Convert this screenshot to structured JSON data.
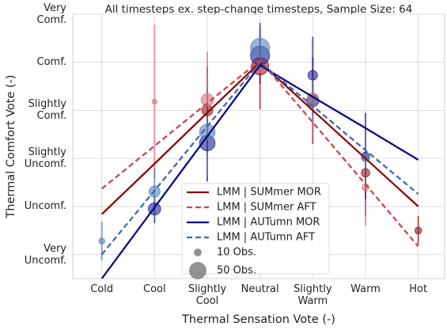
{
  "chart_data": {
    "type": "line",
    "title": "All timesteps ex. step-change timesteps, Sample Size: 64",
    "x_label": "Thermal Sensation Vote (-)",
    "y_label": "Thermal Comfort Vote (-)",
    "categories": [
      "Cold",
      "Cool",
      "Slightly Cool",
      "Neutral",
      "Slightly Warm",
      "Warm",
      "Hot"
    ],
    "ylim": [
      0.5,
      6.0
    ],
    "yticks": [
      {
        "value": 1,
        "label": "Very Uncomf."
      },
      {
        "value": 2,
        "label": "Uncomf."
      },
      {
        "value": 3,
        "label": "Slightly Uncomf."
      },
      {
        "value": 4,
        "label": "Slightly Comf."
      },
      {
        "value": 5,
        "label": "Comf."
      },
      {
        "value": 6,
        "label": "Very Comf."
      }
    ],
    "grid": true,
    "legend": "lower center",
    "series": [
      {
        "name": "LMM | SUMmer MOR",
        "color": "#8b0a0a",
        "linestyle": "solid",
        "values": [
          1.84,
          2.89,
          3.95,
          5.0,
          4.0,
          3.0,
          2.0
        ]
      },
      {
        "name": "LMM | SUMmer AFT",
        "color": "#c9474f",
        "linestyle": "dashed",
        "values": [
          2.37,
          3.26,
          4.15,
          5.04,
          3.75,
          2.46,
          1.17
        ]
      },
      {
        "name": "LMM | AUTumn MOR",
        "color": "#0a0a80",
        "linestyle": "solid",
        "values": [
          0.5,
          1.98,
          3.46,
          4.94,
          4.28,
          3.63,
          2.97
        ]
      },
      {
        "name": "LMM | AUTumn AFT",
        "color": "#4169aa",
        "linestyle": "dashed",
        "values": [
          1.0,
          2.33,
          3.67,
          5.0,
          4.09,
          3.17,
          2.26
        ]
      }
    ],
    "bubbles": [
      {
        "color": "#9b1c22",
        "values": [
          null,
          null,
          4.0,
          4.92,
          4.2,
          2.7,
          1.5
        ],
        "sizes": [
          null,
          null,
          20,
          50,
          25,
          12,
          8
        ],
        "errors": [
          null,
          null,
          0.9,
          0.9,
          0.9,
          0.9,
          0.3
        ]
      },
      {
        "color": "#d9737a",
        "values": [
          null,
          4.18,
          4.22,
          4.95,
          4.25,
          2.4,
          null
        ],
        "sizes": [
          null,
          4,
          25,
          40,
          20,
          8,
          null
        ],
        "errors": [
          null,
          1.6,
          1.0,
          0.5,
          0.6,
          0.8,
          null
        ]
      },
      {
        "color": "#23238f",
        "values": [
          null,
          1.95,
          3.32,
          5.14,
          4.73,
          3.05,
          null
        ],
        "sizes": [
          null,
          25,
          40,
          60,
          15,
          10,
          null
        ],
        "errors": [
          null,
          0.3,
          0.8,
          0.6,
          0.8,
          0.9,
          null
        ]
      },
      {
        "color": "#5b80bd",
        "values": [
          1.28,
          2.31,
          3.55,
          5.3,
          4.2,
          3.02,
          null
        ],
        "sizes": [
          6,
          20,
          40,
          60,
          20,
          12,
          null
        ],
        "errors": [
          0.4,
          0.5,
          0.9,
          0.5,
          0.5,
          0.6,
          null
        ]
      }
    ],
    "size_legend": [
      {
        "value": 10,
        "label": "10 Obs."
      },
      {
        "value": 50,
        "label": "50 Obs."
      }
    ]
  }
}
